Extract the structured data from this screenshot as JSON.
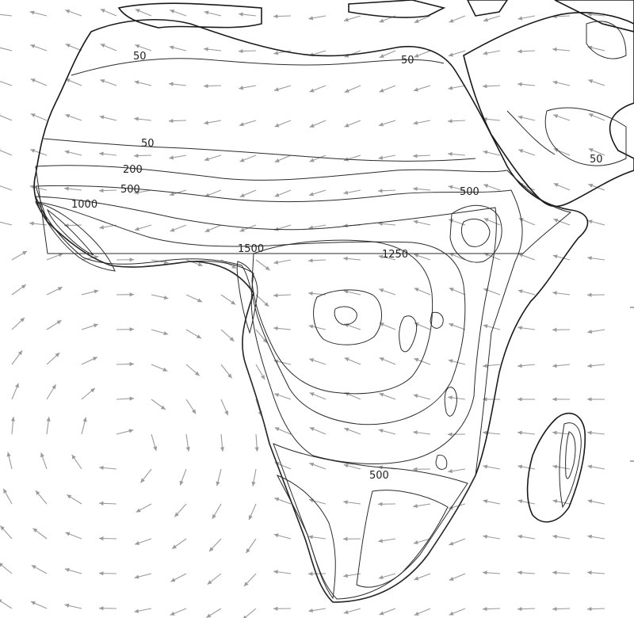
{
  "map": {
    "colors": {
      "ocean": "#ffffff",
      "level_50": "#fdfbd8",
      "level_200": "#eef2bf",
      "level_500": "#d7ebb4",
      "level_1000": "#9fd3b6",
      "level_1250": "#6db3c3",
      "level_1500": "#4f86c2",
      "level_high": "#3a56a8",
      "level_max": "#2a3680",
      "vector": "#9a9a9a",
      "coast": "#1a1a1a"
    },
    "contour_labels": [
      "50",
      "50",
      "50",
      "200",
      "500",
      "1000",
      "500",
      "1250",
      "1500",
      "500",
      "50"
    ],
    "vector_field": "wind-arrows"
  }
}
